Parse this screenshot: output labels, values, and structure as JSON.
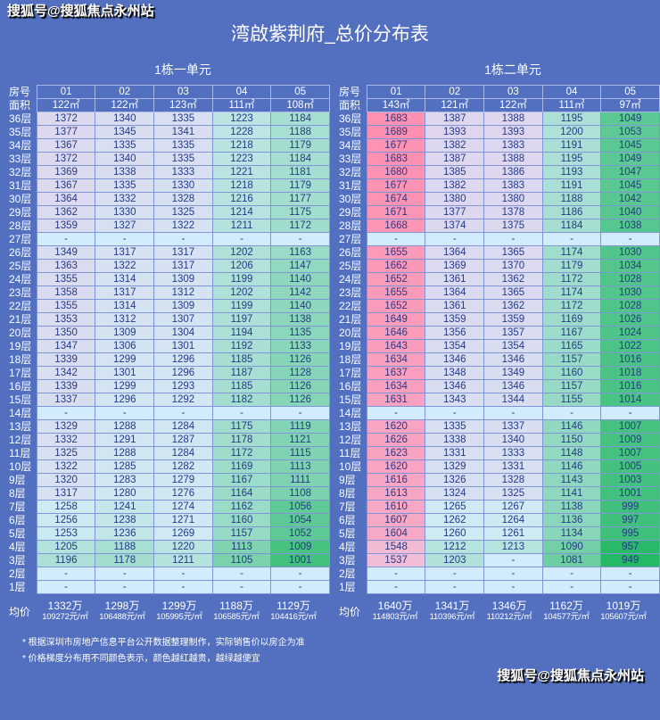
{
  "watermark": "搜狐号@搜狐焦点永州站",
  "title": "湾啟紫荆府_总价分布表",
  "labels": {
    "room": "房号",
    "area": "面积",
    "avg": "均价"
  },
  "colors": {
    "background": "#5270bf",
    "empty": "#d2ebfd",
    "cheap": "#25b865",
    "expensive": "#ff8fb0"
  },
  "units": [
    {
      "name": "1栋一单元",
      "rooms": [
        "01",
        "02",
        "03",
        "04",
        "05"
      ],
      "areas": [
        "122㎡",
        "122㎡",
        "123㎡",
        "111㎡",
        "108㎡"
      ],
      "rows": [
        {
          "floor": "36层",
          "v": [
            1372,
            1340,
            1335,
            1223,
            1184
          ]
        },
        {
          "floor": "35层",
          "v": [
            1377,
            1345,
            1341,
            1228,
            1188
          ]
        },
        {
          "floor": "34层",
          "v": [
            1367,
            1335,
            1335,
            1218,
            1179
          ]
        },
        {
          "floor": "33层",
          "v": [
            1372,
            1340,
            1335,
            1223,
            1184
          ]
        },
        {
          "floor": "32层",
          "v": [
            1369,
            1338,
            1333,
            1221,
            1181
          ]
        },
        {
          "floor": "31层",
          "v": [
            1367,
            1335,
            1330,
            1218,
            1179
          ]
        },
        {
          "floor": "30层",
          "v": [
            1364,
            1332,
            1328,
            1216,
            1177
          ]
        },
        {
          "floor": "29层",
          "v": [
            1362,
            1330,
            1325,
            1214,
            1175
          ]
        },
        {
          "floor": "28层",
          "v": [
            1359,
            1327,
            1322,
            1211,
            1172
          ]
        },
        {
          "floor": "27层",
          "v": [
            null,
            null,
            null,
            null,
            null
          ]
        },
        {
          "floor": "26层",
          "v": [
            1349,
            1317,
            1317,
            1202,
            1163
          ]
        },
        {
          "floor": "25层",
          "v": [
            1363,
            1322,
            1317,
            1206,
            1147
          ]
        },
        {
          "floor": "24层",
          "v": [
            1355,
            1314,
            1309,
            1199,
            1140
          ]
        },
        {
          "floor": "23层",
          "v": [
            1358,
            1317,
            1312,
            1202,
            1142
          ]
        },
        {
          "floor": "22层",
          "v": [
            1355,
            1314,
            1309,
            1199,
            1140
          ]
        },
        {
          "floor": "21层",
          "v": [
            1353,
            1312,
            1307,
            1197,
            1138
          ]
        },
        {
          "floor": "20层",
          "v": [
            1350,
            1309,
            1304,
            1194,
            1135
          ]
        },
        {
          "floor": "19层",
          "v": [
            1347,
            1306,
            1301,
            1192,
            1133
          ]
        },
        {
          "floor": "18层",
          "v": [
            1339,
            1299,
            1296,
            1185,
            1126
          ]
        },
        {
          "floor": "17层",
          "v": [
            1342,
            1301,
            1296,
            1187,
            1128
          ]
        },
        {
          "floor": "16层",
          "v": [
            1339,
            1299,
            1293,
            1185,
            1126
          ]
        },
        {
          "floor": "15层",
          "v": [
            1337,
            1296,
            1292,
            1182,
            1126
          ]
        },
        {
          "floor": "14层",
          "v": [
            null,
            null,
            null,
            null,
            null
          ]
        },
        {
          "floor": "13层",
          "v": [
            1329,
            1288,
            1284,
            1175,
            1119
          ]
        },
        {
          "floor": "12层",
          "v": [
            1332,
            1291,
            1287,
            1178,
            1121
          ]
        },
        {
          "floor": "11层",
          "v": [
            1325,
            1288,
            1284,
            1172,
            1115
          ]
        },
        {
          "floor": "10层",
          "v": [
            1322,
            1285,
            1282,
            1169,
            1113
          ]
        },
        {
          "floor": "9层",
          "v": [
            1320,
            1283,
            1279,
            1167,
            1111
          ]
        },
        {
          "floor": "8层",
          "v": [
            1317,
            1280,
            1276,
            1164,
            1108
          ]
        },
        {
          "floor": "7层",
          "v": [
            1258,
            1241,
            1274,
            1162,
            1056
          ]
        },
        {
          "floor": "6层",
          "v": [
            1256,
            1238,
            1271,
            1160,
            1054
          ]
        },
        {
          "floor": "5层",
          "v": [
            1253,
            1236,
            1269,
            1157,
            1052
          ]
        },
        {
          "floor": "4层",
          "v": [
            1205,
            1188,
            1220,
            1113,
            1009
          ]
        },
        {
          "floor": "3层",
          "v": [
            1196,
            1178,
            1211,
            1105,
            1001
          ]
        },
        {
          "floor": "2层",
          "v": [
            null,
            null,
            null,
            null,
            null
          ]
        },
        {
          "floor": "1层",
          "v": [
            null,
            null,
            null,
            null,
            null
          ]
        }
      ],
      "avg_total": [
        "1332万",
        "1298万",
        "1299万",
        "1188万",
        "1129万"
      ],
      "avg_unit": [
        "109272元/㎡",
        "106488元/㎡",
        "105995元/㎡",
        "106585元/㎡",
        "104416元/㎡"
      ]
    },
    {
      "name": "1栋二单元",
      "rooms": [
        "01",
        "02",
        "03",
        "04",
        "05"
      ],
      "areas": [
        "143㎡",
        "121㎡",
        "122㎡",
        "111㎡",
        "97㎡"
      ],
      "rows": [
        {
          "floor": "36层",
          "v": [
            1683,
            1387,
            1388,
            1195,
            1049
          ]
        },
        {
          "floor": "35层",
          "v": [
            1689,
            1393,
            1393,
            1200,
            1053
          ]
        },
        {
          "floor": "34层",
          "v": [
            1677,
            1382,
            1383,
            1191,
            1045
          ]
        },
        {
          "floor": "33层",
          "v": [
            1683,
            1387,
            1388,
            1195,
            1049
          ]
        },
        {
          "floor": "32层",
          "v": [
            1680,
            1385,
            1386,
            1193,
            1047
          ]
        },
        {
          "floor": "31层",
          "v": [
            1677,
            1382,
            1383,
            1191,
            1045
          ]
        },
        {
          "floor": "30层",
          "v": [
            1674,
            1380,
            1380,
            1188,
            1042
          ]
        },
        {
          "floor": "29层",
          "v": [
            1671,
            1377,
            1378,
            1186,
            1040
          ]
        },
        {
          "floor": "28层",
          "v": [
            1668,
            1374,
            1375,
            1184,
            1038
          ]
        },
        {
          "floor": "27层",
          "v": [
            null,
            null,
            null,
            null,
            null
          ]
        },
        {
          "floor": "26层",
          "v": [
            1655,
            1364,
            1365,
            1174,
            1030
          ]
        },
        {
          "floor": "25层",
          "v": [
            1662,
            1369,
            1370,
            1179,
            1034
          ]
        },
        {
          "floor": "24层",
          "v": [
            1652,
            1361,
            1362,
            1172,
            1028
          ]
        },
        {
          "floor": "23层",
          "v": [
            1655,
            1364,
            1365,
            1174,
            1030
          ]
        },
        {
          "floor": "22层",
          "v": [
            1652,
            1361,
            1362,
            1172,
            1028
          ]
        },
        {
          "floor": "21层",
          "v": [
            1649,
            1359,
            1359,
            1169,
            1026
          ]
        },
        {
          "floor": "20层",
          "v": [
            1646,
            1356,
            1357,
            1167,
            1024
          ]
        },
        {
          "floor": "19层",
          "v": [
            1643,
            1354,
            1354,
            1165,
            1022
          ]
        },
        {
          "floor": "18层",
          "v": [
            1634,
            1346,
            1346,
            1157,
            1016
          ]
        },
        {
          "floor": "17层",
          "v": [
            1637,
            1348,
            1349,
            1160,
            1018
          ]
        },
        {
          "floor": "16层",
          "v": [
            1634,
            1346,
            1346,
            1157,
            1016
          ]
        },
        {
          "floor": "15层",
          "v": [
            1631,
            1343,
            1344,
            1155,
            1014
          ]
        },
        {
          "floor": "14层",
          "v": [
            null,
            null,
            null,
            null,
            null
          ]
        },
        {
          "floor": "13层",
          "v": [
            1620,
            1335,
            1337,
            1146,
            1007
          ]
        },
        {
          "floor": "12层",
          "v": [
            1626,
            1338,
            1340,
            1150,
            1009
          ]
        },
        {
          "floor": "11层",
          "v": [
            1623,
            1331,
            1333,
            1148,
            1007
          ]
        },
        {
          "floor": "10层",
          "v": [
            1620,
            1329,
            1331,
            1146,
            1005
          ]
        },
        {
          "floor": "9层",
          "v": [
            1616,
            1326,
            1328,
            1143,
            1003
          ]
        },
        {
          "floor": "8层",
          "v": [
            1613,
            1324,
            1325,
            1141,
            1001
          ]
        },
        {
          "floor": "7层",
          "v": [
            1610,
            1265,
            1267,
            1138,
            999
          ]
        },
        {
          "floor": "6层",
          "v": [
            1607,
            1262,
            1264,
            1136,
            997
          ]
        },
        {
          "floor": "5层",
          "v": [
            1604,
            1260,
            1261,
            1134,
            995
          ]
        },
        {
          "floor": "4层",
          "v": [
            1548,
            1212,
            1213,
            1090,
            957
          ]
        },
        {
          "floor": "3层",
          "v": [
            1537,
            1203,
            null,
            1081,
            949
          ]
        },
        {
          "floor": "2层",
          "v": [
            null,
            null,
            null,
            null,
            null
          ]
        },
        {
          "floor": "1层",
          "v": [
            null,
            null,
            null,
            null,
            null
          ]
        }
      ],
      "avg_total": [
        "1640万",
        "1341万",
        "1346万",
        "1162万",
        "1019万"
      ],
      "avg_unit": [
        "114803元/㎡",
        "110396元/㎡",
        "110212元/㎡",
        "104577元/㎡",
        "105607元/㎡"
      ]
    }
  ],
  "empty_mark": "-",
  "notes": [
    "* 根据深圳市房地产信息平台公开数据整理制作，实际销售价以房企为准",
    "* 价格梯度分布用不同颜色表示，颜色越红越贵，越绿越便宜"
  ]
}
